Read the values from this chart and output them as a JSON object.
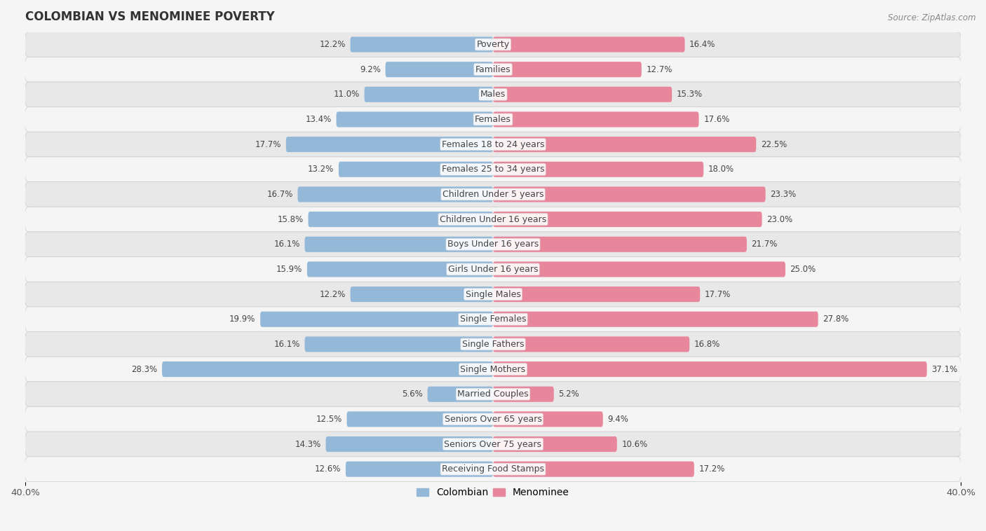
{
  "title": "COLOMBIAN VS MENOMINEE POVERTY",
  "source": "Source: ZipAtlas.com",
  "categories": [
    "Poverty",
    "Families",
    "Males",
    "Females",
    "Females 18 to 24 years",
    "Females 25 to 34 years",
    "Children Under 5 years",
    "Children Under 16 years",
    "Boys Under 16 years",
    "Girls Under 16 years",
    "Single Males",
    "Single Females",
    "Single Fathers",
    "Single Mothers",
    "Married Couples",
    "Seniors Over 65 years",
    "Seniors Over 75 years",
    "Receiving Food Stamps"
  ],
  "colombian": [
    12.2,
    9.2,
    11.0,
    13.4,
    17.7,
    13.2,
    16.7,
    15.8,
    16.1,
    15.9,
    12.2,
    19.9,
    16.1,
    28.3,
    5.6,
    12.5,
    14.3,
    12.6
  ],
  "menominee": [
    16.4,
    12.7,
    15.3,
    17.6,
    22.5,
    18.0,
    23.3,
    23.0,
    21.7,
    25.0,
    17.7,
    27.8,
    16.8,
    37.1,
    5.2,
    9.4,
    10.6,
    17.2
  ],
  "colombian_color": "#94b8d8",
  "menominee_color": "#e8879c",
  "background_row_light": "#e8e8e8",
  "background_row_dark": "#d8d8d8",
  "row_bg_light": "#f0f0f0",
  "row_bg_dark": "#e2e2e2",
  "axis_max": 40.0,
  "bar_height": 0.62,
  "font_size_labels": 9.0,
  "font_size_title": 12,
  "font_size_values": 8.5,
  "legend_labels": [
    "Colombian",
    "Menominee"
  ],
  "fig_bg": "#f5f5f5"
}
